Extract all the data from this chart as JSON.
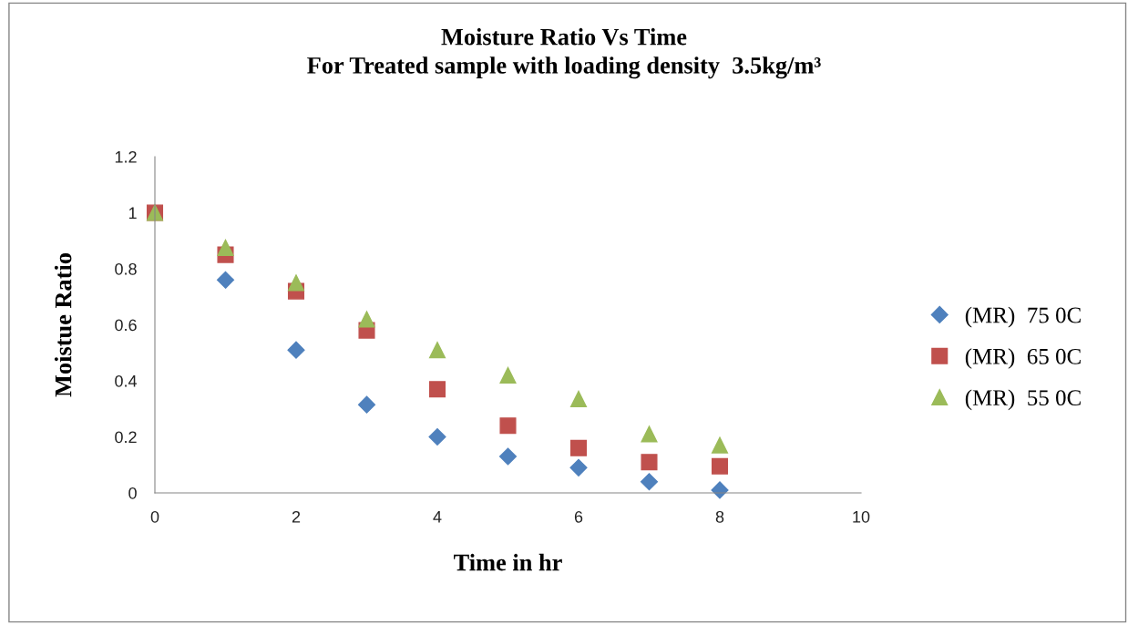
{
  "chart_data": {
    "type": "scatter",
    "title": "Moisture Ratio Vs Time\nFor Treated sample with loading density  3.5kg/m³",
    "xlabel": "Time in hr",
    "ylabel": "Moistue Ratio",
    "x": [
      0,
      1,
      2,
      3,
      4,
      5,
      6,
      7,
      8
    ],
    "series": [
      {
        "name": "(MR)  75 0C",
        "color": "#4f81bd",
        "marker": "diamond",
        "values": [
          null,
          0.76,
          0.51,
          0.315,
          0.2,
          0.13,
          0.09,
          0.04,
          0.01
        ]
      },
      {
        "name": "(MR)  65 0C",
        "color": "#c0504d",
        "marker": "square",
        "values": [
          1.0,
          0.85,
          0.72,
          0.58,
          0.37,
          0.24,
          0.16,
          0.11,
          0.095
        ]
      },
      {
        "name": "(MR)  55 0C",
        "color": "#9bbb59",
        "marker": "triangle",
        "values": [
          1.0,
          0.875,
          0.75,
          0.62,
          0.51,
          0.42,
          0.335,
          0.21,
          0.17
        ]
      }
    ],
    "xlim": [
      0,
      10
    ],
    "xticks": [
      0,
      2,
      4,
      6,
      8,
      10
    ],
    "ylim": [
      0,
      1.2
    ],
    "yticks": [
      0,
      0.2,
      0.4,
      0.6,
      0.8,
      1,
      1.2
    ],
    "grid": false,
    "legend": "right"
  }
}
